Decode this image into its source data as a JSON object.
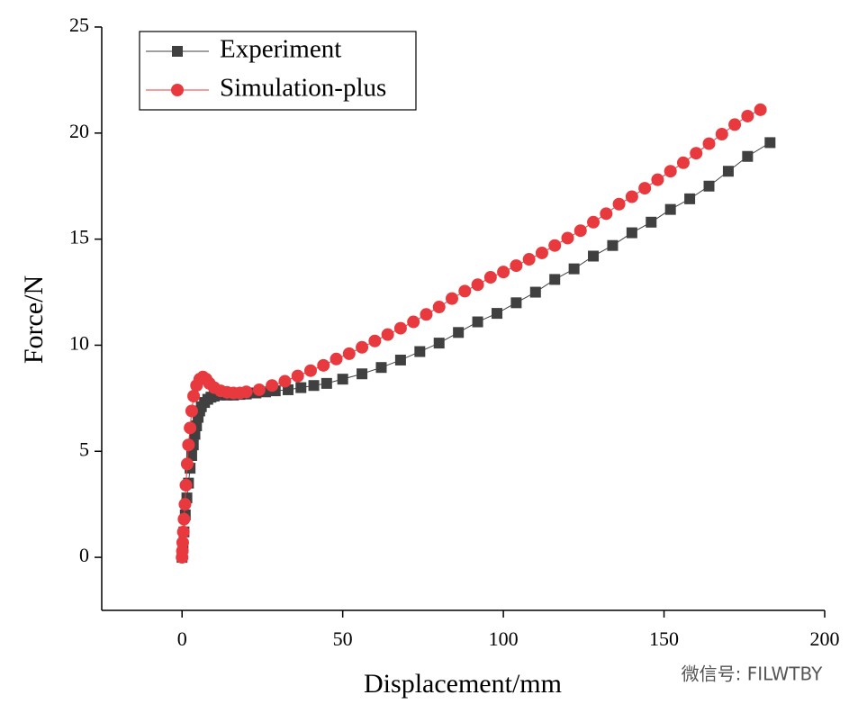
{
  "chart_data": {
    "type": "line",
    "xlabel": "Displacement/mm",
    "ylabel": "Force/N",
    "xlim": [
      -25,
      200
    ],
    "xticks": [
      0,
      50,
      100,
      150,
      200
    ],
    "ylim": [
      -2.5,
      25
    ],
    "yticks": [
      0,
      5,
      10,
      15,
      20,
      25
    ],
    "legend": "upper left",
    "annotation": "微信号: FILWTBY",
    "series": [
      {
        "name": "Experiment",
        "color": "#404040",
        "marker": "square",
        "x": [
          0,
          0.3,
          0.6,
          1,
          1.5,
          2,
          2.5,
          3,
          3.5,
          4,
          4.5,
          5,
          5.5,
          6,
          7,
          8,
          9,
          10,
          12,
          14,
          16,
          18,
          20,
          23,
          26,
          29,
          33,
          37,
          41,
          45,
          50,
          56,
          62,
          68,
          74,
          80,
          86,
          92,
          98,
          104,
          110,
          116,
          122,
          128,
          134,
          140,
          146,
          152,
          158,
          164,
          170,
          176,
          183
        ],
        "values": [
          0,
          0.5,
          1.2,
          2,
          2.8,
          3.5,
          4.2,
          4.8,
          5.3,
          5.8,
          6.2,
          6.6,
          6.9,
          7.1,
          7.3,
          7.45,
          7.55,
          7.6,
          7.65,
          7.65,
          7.65,
          7.68,
          7.7,
          7.75,
          7.8,
          7.85,
          7.9,
          8.0,
          8.1,
          8.2,
          8.4,
          8.65,
          8.95,
          9.3,
          9.7,
          10.1,
          10.6,
          11.1,
          11.5,
          12.0,
          12.5,
          13.1,
          13.6,
          14.2,
          14.7,
          15.3,
          15.8,
          16.4,
          16.9,
          17.5,
          18.2,
          18.9,
          19.55
        ]
      },
      {
        "name": "Simulation-plus",
        "color": "#e8393f",
        "marker": "circle",
        "x": [
          0,
          0.1,
          0.2,
          0.4,
          0.6,
          0.9,
          1.2,
          1.6,
          2,
          2.5,
          3,
          3.6,
          4.5,
          5.5,
          6.5,
          7.5,
          8.5,
          10,
          12,
          14,
          16,
          18,
          20,
          24,
          28,
          32,
          36,
          40,
          44,
          48,
          52,
          56,
          60,
          64,
          68,
          72,
          76,
          80,
          84,
          88,
          92,
          96,
          100,
          104,
          108,
          112,
          116,
          120,
          124,
          128,
          132,
          136,
          140,
          144,
          148,
          152,
          156,
          160,
          164,
          168,
          172,
          176,
          180
        ],
        "values": [
          0,
          0.3,
          0.7,
          1.2,
          1.8,
          2.5,
          3.4,
          4.4,
          5.3,
          6.1,
          6.9,
          7.6,
          8.1,
          8.4,
          8.5,
          8.4,
          8.2,
          8.0,
          7.85,
          7.78,
          7.75,
          7.75,
          7.8,
          7.9,
          8.1,
          8.3,
          8.55,
          8.8,
          9.05,
          9.35,
          9.6,
          9.9,
          10.2,
          10.5,
          10.8,
          11.1,
          11.45,
          11.8,
          12.2,
          12.55,
          12.85,
          13.2,
          13.45,
          13.75,
          14.05,
          14.35,
          14.7,
          15.05,
          15.4,
          15.8,
          16.2,
          16.65,
          17.0,
          17.4,
          17.8,
          18.2,
          18.6,
          19.05,
          19.5,
          19.95,
          20.4,
          20.8,
          21.1
        ]
      }
    ]
  }
}
